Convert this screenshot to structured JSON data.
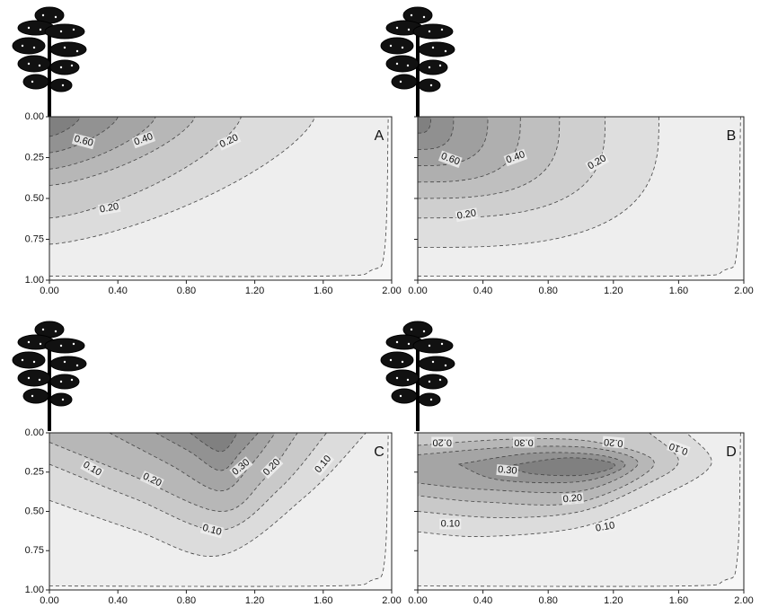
{
  "chart_data": [
    {
      "type": "contour",
      "label": "A",
      "xlim": [
        0,
        2
      ],
      "ylim": [
        0,
        1
      ],
      "yreverse": true,
      "xticks": [
        {
          "value": 0,
          "label": "0.00"
        },
        {
          "value": 0.4,
          "label": "0.40"
        },
        {
          "value": 0.8,
          "label": "0.80"
        },
        {
          "value": 1.2,
          "label": "1.20"
        },
        {
          "value": 1.6,
          "label": "1.60"
        },
        {
          "value": 2,
          "label": "2.00"
        }
      ],
      "yticks": [
        {
          "value": 0,
          "label": "0.00"
        },
        {
          "value": 0.25,
          "label": "0.25"
        },
        {
          "value": 0.5,
          "label": "0.50"
        },
        {
          "value": 0.75,
          "label": "0.75"
        },
        {
          "value": 1,
          "label": "1.00"
        }
      ],
      "contour_labels": [
        {
          "value": 0.6,
          "label": "0.60"
        },
        {
          "value": 0.4,
          "label": "0.40"
        },
        {
          "value": 0.2,
          "label": "0.20"
        },
        {
          "value": 0.2,
          "label": "0.20"
        }
      ]
    },
    {
      "type": "contour",
      "label": "B",
      "xlim": [
        0,
        2
      ],
      "ylim": [
        0,
        1
      ],
      "yreverse": true,
      "xticks": [
        {
          "value": 0,
          "label": "0.00"
        },
        {
          "value": 0.4,
          "label": "0.40"
        },
        {
          "value": 0.8,
          "label": "0.80"
        },
        {
          "value": 1.2,
          "label": "1.20"
        },
        {
          "value": 1.6,
          "label": "1.60"
        },
        {
          "value": 2,
          "label": "2.00"
        }
      ],
      "yticks": [
        0,
        0.25,
        0.5,
        0.75,
        1
      ],
      "contour_labels": [
        {
          "value": 0.6,
          "label": "0.60"
        },
        {
          "value": 0.4,
          "label": "0.40"
        },
        {
          "value": 0.2,
          "label": "0.20"
        },
        {
          "value": 0.2,
          "label": "0.20"
        }
      ]
    },
    {
      "type": "contour",
      "label": "C",
      "xlim": [
        0,
        2
      ],
      "ylim": [
        0,
        1
      ],
      "yreverse": true,
      "xticks": [
        {
          "value": 0,
          "label": "0.00"
        },
        {
          "value": 0.4,
          "label": "0.40"
        },
        {
          "value": 0.8,
          "label": "0.80"
        },
        {
          "value": 1.2,
          "label": "1.20"
        },
        {
          "value": 1.6,
          "label": "1.60"
        },
        {
          "value": 2,
          "label": "2.00"
        }
      ],
      "yticks": [
        {
          "value": 0,
          "label": "0.00"
        },
        {
          "value": 0.25,
          "label": "0.25"
        },
        {
          "value": 0.5,
          "label": "0.50"
        },
        {
          "value": 0.75,
          "label": "0.75"
        },
        {
          "value": 1,
          "label": "1.00"
        }
      ],
      "contour_labels": [
        {
          "value": 0.1,
          "label": "0.10"
        },
        {
          "value": 0.2,
          "label": "0.20"
        },
        {
          "value": 0.3,
          "label": "0.30"
        },
        {
          "value": 0.2,
          "label": "0.20"
        },
        {
          "value": 0.1,
          "label": "0.10"
        },
        {
          "value": 0.1,
          "label": "0.10"
        }
      ]
    },
    {
      "type": "contour",
      "label": "D",
      "xlim": [
        0,
        2
      ],
      "ylim": [
        0,
        1
      ],
      "yreverse": true,
      "xticks": [
        {
          "value": 0,
          "label": "0.00"
        },
        {
          "value": 0.4,
          "label": "0.40"
        },
        {
          "value": 0.8,
          "label": "0.80"
        },
        {
          "value": 1.2,
          "label": "1.20"
        },
        {
          "value": 1.6,
          "label": "1.60"
        },
        {
          "value": 2,
          "label": "2.00"
        }
      ],
      "yticks": [
        0,
        0.25,
        0.5,
        0.75,
        1
      ],
      "contour_labels": [
        {
          "value": 0.2,
          "label": "0.20"
        },
        {
          "value": 0.3,
          "label": "0.30"
        },
        {
          "value": 0.2,
          "label": "0.20"
        },
        {
          "value": 0.1,
          "label": "0.10"
        },
        {
          "value": 0.3,
          "label": "0.30"
        },
        {
          "value": 0.2,
          "label": "0.20"
        },
        {
          "value": 0.1,
          "label": "0.10"
        },
        {
          "value": 0.1,
          "label": "0.10"
        }
      ]
    }
  ]
}
